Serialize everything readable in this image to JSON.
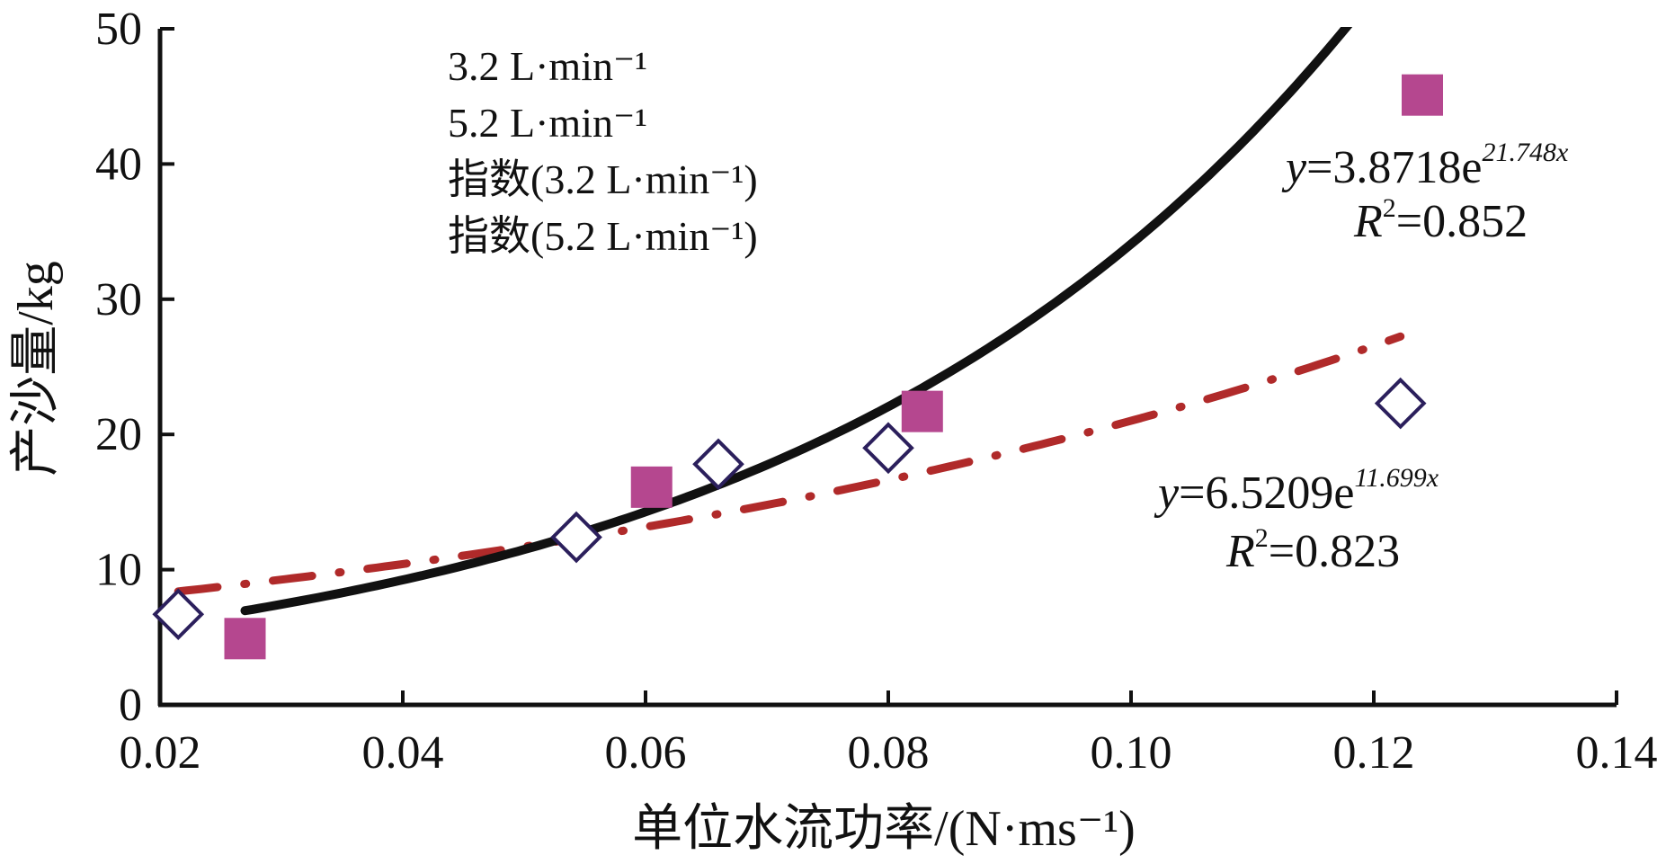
{
  "chart_data": {
    "type": "scatter",
    "title": "",
    "xlabel": "单位水流功率/(N·ms⁻¹)",
    "ylabel": "产沙量/kg",
    "xlim": [
      0.02,
      0.14
    ],
    "ylim": [
      0,
      50
    ],
    "x_ticks": [
      "0.02",
      "0.04",
      "0.06",
      "0.08",
      "0.10",
      "0.12",
      "0.14"
    ],
    "y_ticks": [
      "0",
      "10",
      "20",
      "30",
      "40",
      "50"
    ],
    "grid": false,
    "legend_position": "top-left",
    "legend": [
      "3.2 L·min⁻¹",
      "5.2 L·min⁻¹",
      "指数(3.2 L·min⁻¹)",
      "指数(5.2 L·min⁻¹)"
    ],
    "series": [
      {
        "name": "3.2 L·min⁻¹",
        "marker": "diamond-open",
        "color": "#2b1f5c",
        "x": [
          0.0215,
          0.0543,
          0.066,
          0.08,
          0.1222
        ],
        "y": [
          6.7,
          12.4,
          17.8,
          19.0,
          22.3
        ]
      },
      {
        "name": "5.2 L·min⁻¹",
        "marker": "square-filled",
        "color": "#b5478f",
        "x": [
          0.027,
          0.0605,
          0.0828,
          0.124
        ],
        "y": [
          4.9,
          16.1,
          21.7,
          45.1
        ]
      }
    ],
    "trendlines": [
      {
        "name": "指数(3.2 L·min⁻¹)",
        "type": "exponential",
        "a": 6.5209,
        "b": 11.699,
        "x_range": [
          0.0215,
          0.1222
        ],
        "style": "dash-dot",
        "color": "#b02a2a",
        "equation_parts": [
          "y",
          "=6.5209e",
          "11.699x"
        ],
        "r2_parts": [
          "R",
          "2",
          "=0.823"
        ]
      },
      {
        "name": "指数(5.2 L·min⁻¹)",
        "type": "exponential",
        "a": 3.8718,
        "b": 21.748,
        "x_range": [
          0.027,
          0.124
        ],
        "style": "solid",
        "color": "#111111",
        "equation_parts": [
          "y",
          "=3.8718e",
          "21.748x"
        ],
        "r2_parts": [
          "R",
          "2",
          "=0.852"
        ]
      }
    ]
  }
}
